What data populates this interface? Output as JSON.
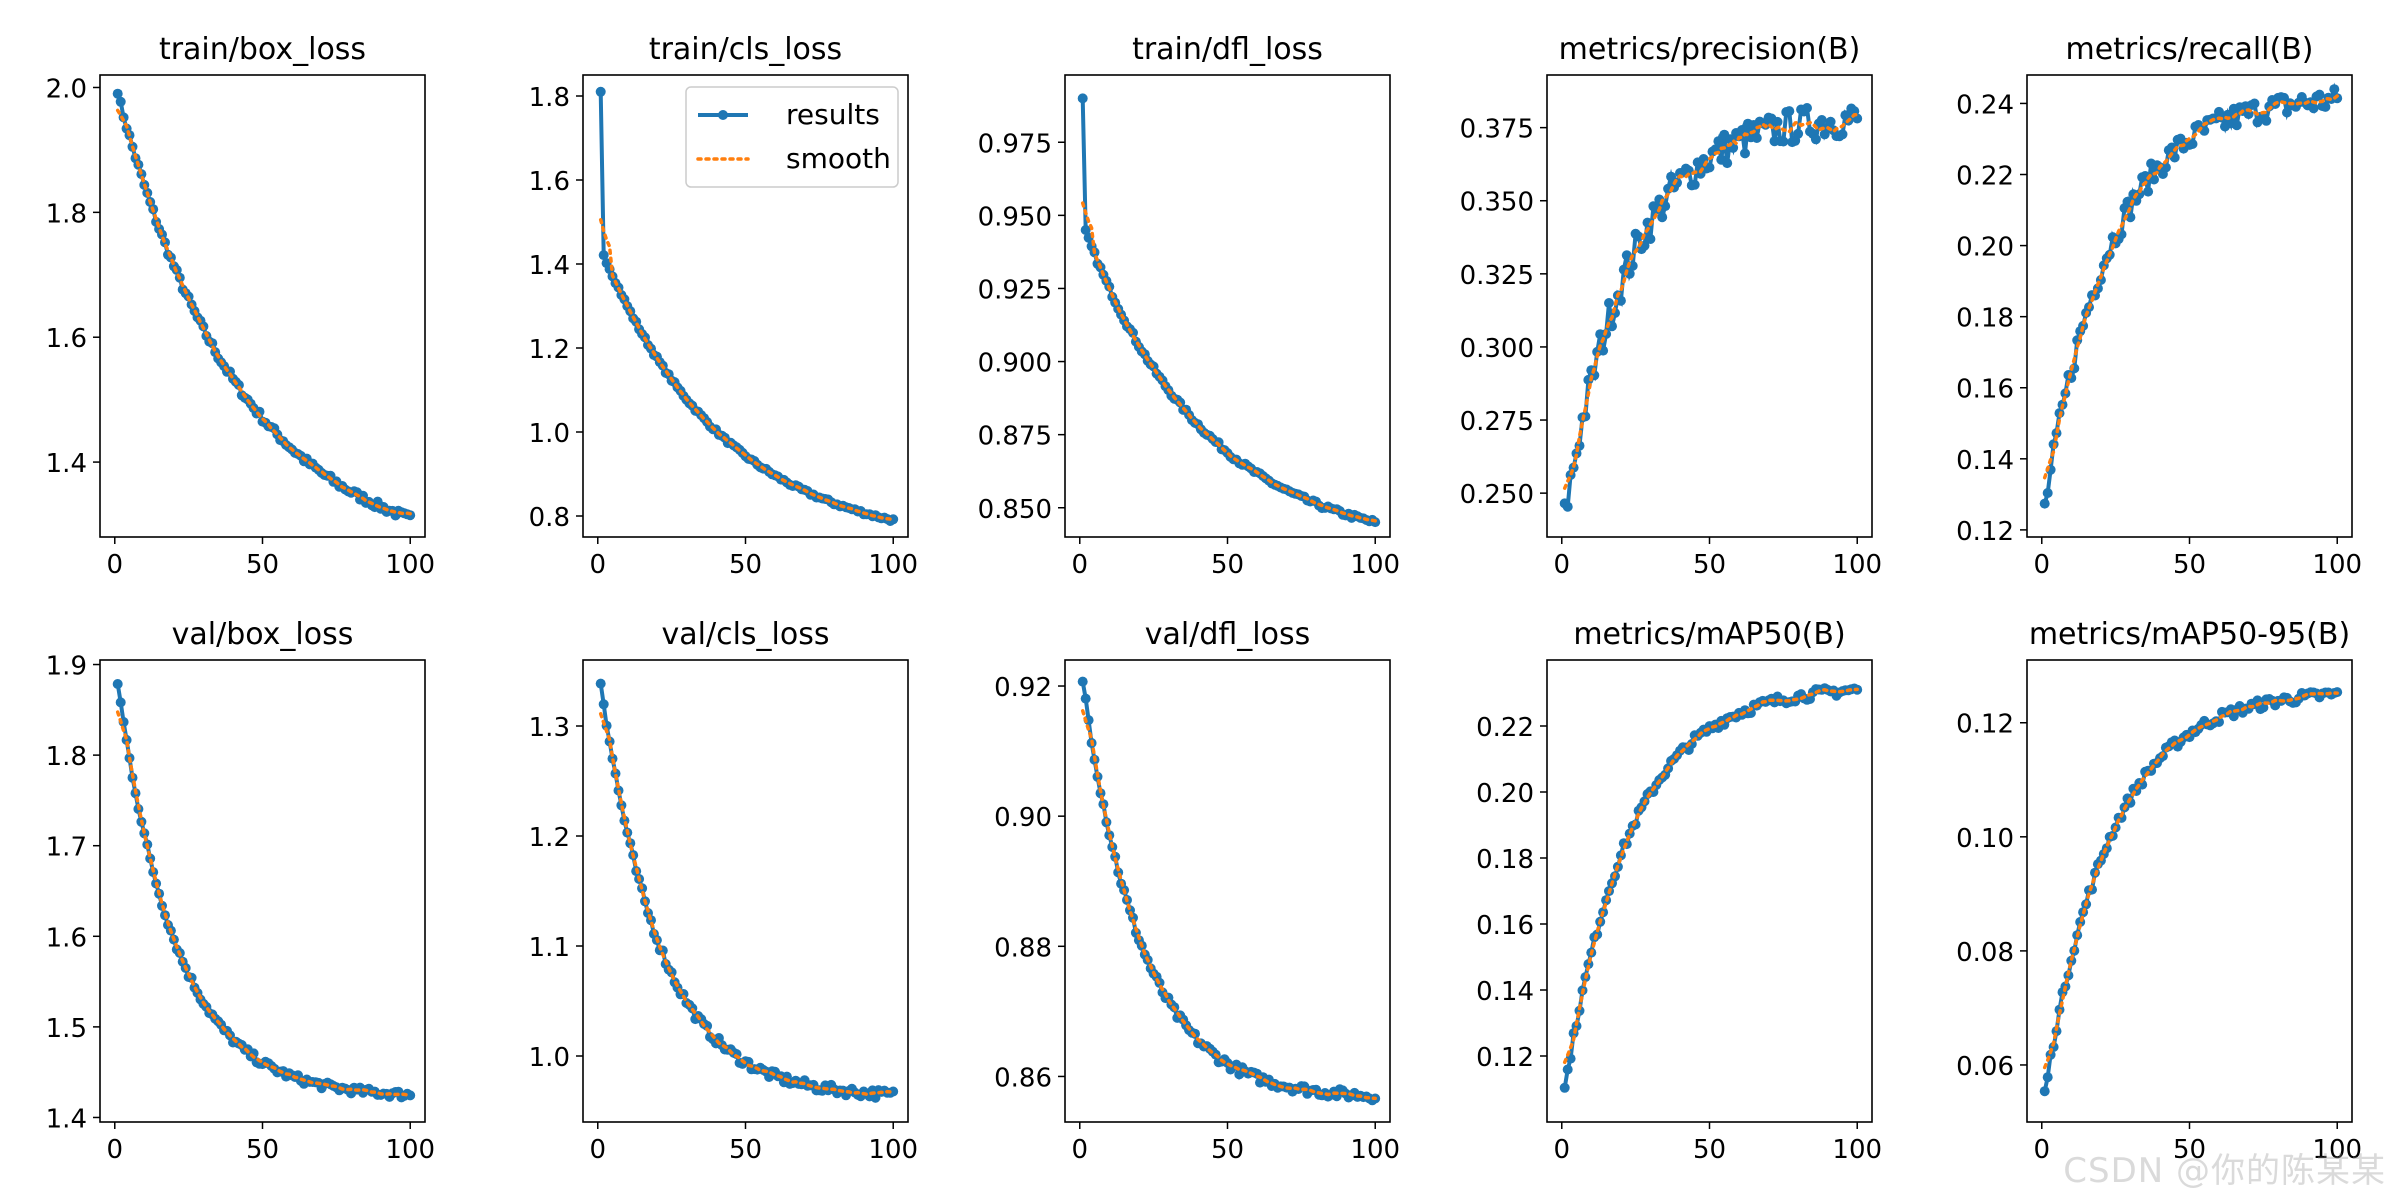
{
  "legend": {
    "results": "results",
    "smooth": "smooth",
    "placement": "top-right of train/cls_loss"
  },
  "colors": {
    "results": "#1f77b4",
    "smooth": "#ff7f0e",
    "axis": "#000000",
    "background": "#ffffff"
  },
  "watermark": "CSDN @你的陈某某",
  "chart_data": [
    {
      "type": "line",
      "title": "train/box_loss",
      "xlim": [
        -5,
        105
      ],
      "ylim": [
        1.28,
        2.02
      ],
      "yticks": [
        1.4,
        1.6,
        1.8,
        2.0
      ],
      "ytick_labels": [
        "1.4",
        "1.6",
        "1.8",
        "2.0"
      ],
      "xticks": [
        0,
        50,
        100
      ],
      "xtick_labels": [
        "0",
        "50",
        "100"
      ],
      "kind": "decay",
      "start": 1.99,
      "end": 1.31,
      "p1": 1.44,
      "noise": 0.006,
      "spike": 1,
      "spikeVal": 1.99
    },
    {
      "type": "line",
      "title": "train/cls_loss",
      "xlim": [
        -5,
        105
      ],
      "ylim": [
        0.75,
        1.85
      ],
      "yticks": [
        0.8,
        1.0,
        1.2,
        1.4,
        1.6,
        1.8
      ],
      "ytick_labels": [
        "0.8",
        "1.0",
        "1.2",
        "1.4",
        "1.6",
        "1.8"
      ],
      "xticks": [
        0,
        50,
        100
      ],
      "xtick_labels": [
        "0",
        "50",
        "100"
      ],
      "kind": "decay",
      "start": 1.44,
      "end": 0.79,
      "p1": 1.81,
      "noise": 0.004,
      "spike": 1,
      "spikeVal": 1.81,
      "legend": true
    },
    {
      "type": "line",
      "title": "train/dfl_loss",
      "xlim": [
        -5,
        105
      ],
      "ylim": [
        0.84,
        0.998
      ],
      "yticks": [
        0.85,
        0.875,
        0.9,
        0.925,
        0.95,
        0.975
      ],
      "ytick_labels": [
        "0.850",
        "0.875",
        "0.900",
        "0.925",
        "0.950",
        "0.975"
      ],
      "xticks": [
        0,
        50,
        100
      ],
      "xtick_labels": [
        "0",
        "50",
        "100"
      ],
      "kind": "decay",
      "start": 0.947,
      "end": 0.845,
      "p1": 0.99,
      "noise": 0.0008,
      "spike": 1,
      "spikeVal": 0.99
    },
    {
      "type": "line",
      "title": "metrics/precision(B)",
      "xlim": [
        -5,
        105
      ],
      "ylim": [
        0.235,
        0.393
      ],
      "yticks": [
        0.25,
        0.275,
        0.3,
        0.325,
        0.35,
        0.375
      ],
      "ytick_labels": [
        "0.250",
        "0.275",
        "0.300",
        "0.325",
        "0.350",
        "0.375"
      ],
      "xticks": [
        0,
        50,
        100
      ],
      "xtick_labels": [
        "0",
        "50",
        "100"
      ],
      "kind": "rise",
      "start": 0.242,
      "end": 0.378,
      "noise": 0.006
    },
    {
      "type": "line",
      "title": "metrics/recall(B)",
      "xlim": [
        -5,
        105
      ],
      "ylim": [
        0.118,
        0.248
      ],
      "yticks": [
        0.12,
        0.14,
        0.16,
        0.18,
        0.2,
        0.22,
        0.24
      ],
      "ytick_labels": [
        "0.12",
        "0.14",
        "0.16",
        "0.18",
        "0.20",
        "0.22",
        "0.24"
      ],
      "xticks": [
        0,
        50,
        100
      ],
      "xtick_labels": [
        "0",
        "50",
        "100"
      ],
      "kind": "rise",
      "start": 0.126,
      "end": 0.241,
      "noise": 0.0035
    },
    {
      "type": "line",
      "title": "val/box_loss",
      "xlim": [
        -5,
        105
      ],
      "ylim": [
        1.395,
        1.905
      ],
      "yticks": [
        1.4,
        1.5,
        1.6,
        1.7,
        1.8,
        1.9
      ],
      "ytick_labels": [
        "1.4",
        "1.5",
        "1.6",
        "1.7",
        "1.8",
        "1.9"
      ],
      "xticks": [
        0,
        50,
        100
      ],
      "xtick_labels": [
        "0",
        "50",
        "100"
      ],
      "kind": "decay",
      "start": 1.88,
      "end": 1.425,
      "noise": 0.004,
      "flat": true
    },
    {
      "type": "line",
      "title": "val/cls_loss",
      "xlim": [
        -5,
        105
      ],
      "ylim": [
        0.94,
        1.36
      ],
      "yticks": [
        1.0,
        1.1,
        1.2,
        1.3
      ],
      "ytick_labels": [
        "1.0",
        "1.1",
        "1.2",
        "1.3"
      ],
      "xticks": [
        0,
        50,
        100
      ],
      "xtick_labels": [
        "0",
        "50",
        "100"
      ],
      "kind": "decay",
      "start": 1.34,
      "end": 0.965,
      "noise": 0.004,
      "flat": true
    },
    {
      "type": "line",
      "title": "val/dfl_loss",
      "xlim": [
        -5,
        105
      ],
      "ylim": [
        0.853,
        0.924
      ],
      "yticks": [
        0.86,
        0.88,
        0.9,
        0.92
      ],
      "ytick_labels": [
        "0.86",
        "0.88",
        "0.90",
        "0.92"
      ],
      "xticks": [
        0,
        50,
        100
      ],
      "xtick_labels": [
        "0",
        "50",
        "100"
      ],
      "kind": "decay",
      "start": 0.921,
      "end": 0.857,
      "noise": 0.0007,
      "flat": true
    },
    {
      "type": "line",
      "title": "metrics/mAP50(B)",
      "xlim": [
        -5,
        105
      ],
      "ylim": [
        0.1,
        0.24
      ],
      "yticks": [
        0.12,
        0.14,
        0.16,
        0.18,
        0.2,
        0.22
      ],
      "ytick_labels": [
        "0.12",
        "0.14",
        "0.16",
        "0.18",
        "0.20",
        "0.22"
      ],
      "xticks": [
        0,
        50,
        100
      ],
      "xtick_labels": [
        "0",
        "50",
        "100"
      ],
      "kind": "rise",
      "start": 0.11,
      "end": 0.231,
      "noise": 0.0015
    },
    {
      "type": "line",
      "title": "metrics/mAP50-95(B)",
      "xlim": [
        -5,
        105
      ],
      "ylim": [
        0.05,
        0.131
      ],
      "yticks": [
        0.06,
        0.08,
        0.1,
        0.12
      ],
      "ytick_labels": [
        "0.06",
        "0.08",
        "0.10",
        "0.12"
      ],
      "xticks": [
        0,
        50,
        100
      ],
      "xtick_labels": [
        "0",
        "50",
        "100"
      ],
      "kind": "rise",
      "start": 0.055,
      "end": 0.125,
      "noise": 0.0009
    }
  ]
}
